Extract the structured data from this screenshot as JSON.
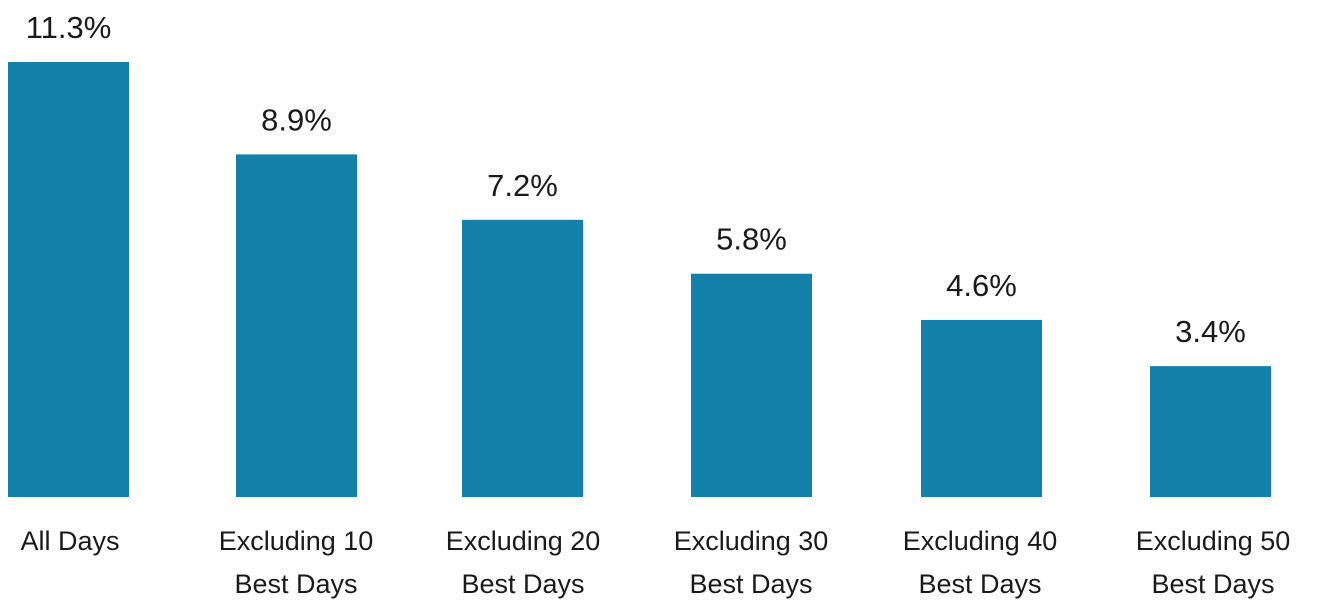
{
  "chart_data": {
    "type": "bar",
    "categories": [
      [
        "All Days"
      ],
      [
        "Excluding 10",
        "Best Days"
      ],
      [
        "Excluding 20",
        "Best Days"
      ],
      [
        "Excluding 30",
        "Best Days"
      ],
      [
        "Excluding 40",
        "Best Days"
      ],
      [
        "Excluding 50",
        "Best Days"
      ]
    ],
    "values": [
      11.3,
      8.9,
      7.2,
      5.8,
      4.6,
      3.4
    ],
    "data_labels": [
      "11.3%",
      "8.9%",
      "7.2%",
      "5.8%",
      "4.6%",
      "3.4%"
    ],
    "ylim": [
      0,
      11.3
    ],
    "grid": false,
    "bar_color": "#1681a8",
    "text_color": "#1a1a1a"
  }
}
